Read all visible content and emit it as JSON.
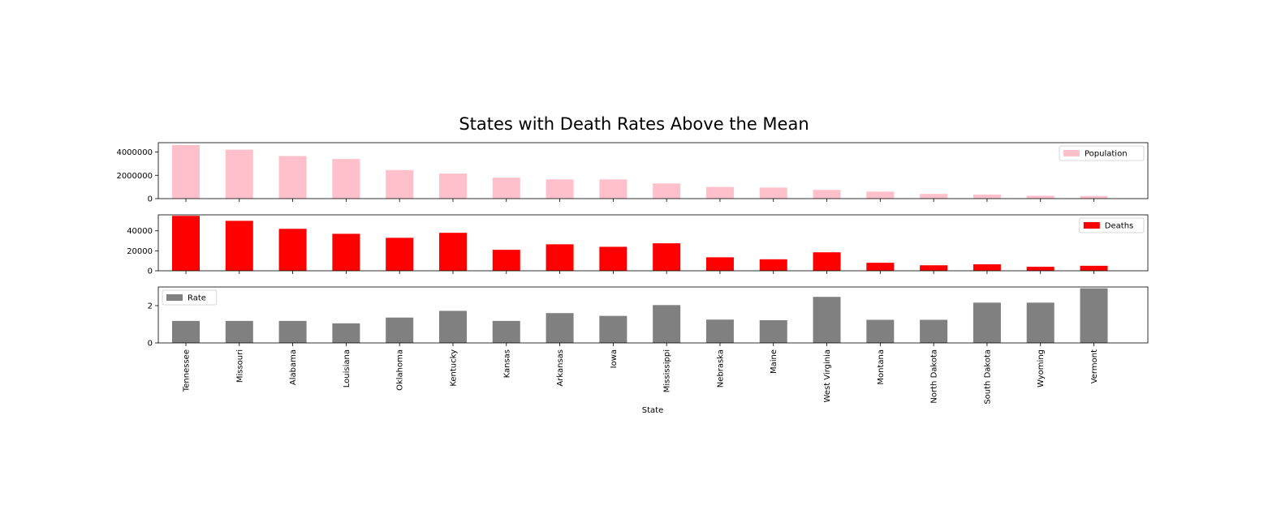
{
  "chart_data": {
    "type": "bar",
    "title": "States with Death Rates Above the Mean",
    "xlabel": "State",
    "categories": [
      "Tennessee",
      "Missouri",
      "Alabama",
      "Louisiana",
      "Oklahoma",
      "Kentucky",
      "Kansas",
      "Arkansas",
      "Iowa",
      "Mississippi",
      "Nebraska",
      "Maine",
      "West Virginia",
      "Montana",
      "North Dakota",
      "South Dakota",
      "Wyoming",
      "Vermont"
    ],
    "panels": [
      {
        "name": "Population",
        "color": "#ffc0cb",
        "ylim": [
          0,
          4800000
        ],
        "yticks": [
          0,
          2000000,
          4000000
        ],
        "ytick_labels": [
          "0",
          "2000000",
          "4000000"
        ],
        "legend": "top-right",
        "values": [
          4600000,
          4200000,
          3650000,
          3400000,
          2450000,
          2150000,
          1800000,
          1650000,
          1650000,
          1300000,
          1000000,
          950000,
          750000,
          600000,
          400000,
          350000,
          250000,
          220000
        ]
      },
      {
        "name": "Deaths",
        "color": "#ff0000",
        "ylim": [
          0,
          56000
        ],
        "yticks": [
          0,
          20000,
          40000
        ],
        "ytick_labels": [
          "0",
          "20000",
          "40000"
        ],
        "legend": "top-right",
        "values": [
          55000,
          50000,
          42000,
          37000,
          33000,
          38000,
          21000,
          26500,
          24000,
          27500,
          13500,
          11500,
          18500,
          8000,
          5500,
          6500,
          4000,
          5000
        ]
      },
      {
        "name": "Rate",
        "color": "#808080",
        "ylim": [
          0,
          3.0
        ],
        "yticks": [
          0,
          2
        ],
        "ytick_labels": [
          "0",
          "2"
        ],
        "legend": "top-left",
        "values": [
          1.18,
          1.18,
          1.18,
          1.05,
          1.36,
          1.72,
          1.18,
          1.6,
          1.45,
          2.03,
          1.25,
          1.22,
          2.47,
          1.24,
          1.24,
          2.16,
          2.16,
          2.93
        ]
      }
    ]
  }
}
